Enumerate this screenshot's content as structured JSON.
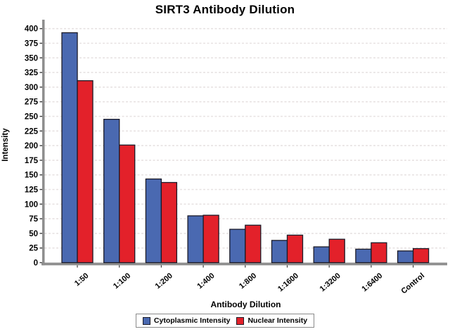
{
  "chart_data": {
    "type": "bar",
    "title": "SIRT3 Antibody Dilution",
    "xlabel": "Antibody Dilution",
    "ylabel": "Intensity",
    "categories": [
      "1:50",
      "1:100",
      "1:200",
      "1:400",
      "1:800",
      "1:1600",
      "1:3200",
      "1:6400",
      "Control"
    ],
    "series": [
      {
        "name": "Cytoplasmic Intensity",
        "color": "#4a69b1",
        "values": [
          393,
          245,
          143,
          80,
          57,
          38,
          27,
          23,
          20
        ]
      },
      {
        "name": "Nuclear Intensity",
        "color": "#e3212a",
        "values": [
          311,
          201,
          137,
          81,
          64,
          47,
          40,
          34,
          24
        ]
      }
    ],
    "ylim": [
      0,
      400
    ],
    "yticks": [
      0,
      25,
      50,
      75,
      100,
      125,
      150,
      175,
      200,
      225,
      250,
      275,
      300,
      325,
      350,
      375,
      400
    ],
    "grid": true,
    "grid_style": "dashed",
    "legend_position": "bottom-center",
    "colors": {
      "bar_border": "#1b1b28",
      "axis": "#8e8e8e",
      "gridline": "#e7e2e2",
      "tick": "#3a3a3a",
      "text": "#000000",
      "legend_border": "#8a8a8a",
      "background": "#ffffff"
    }
  }
}
